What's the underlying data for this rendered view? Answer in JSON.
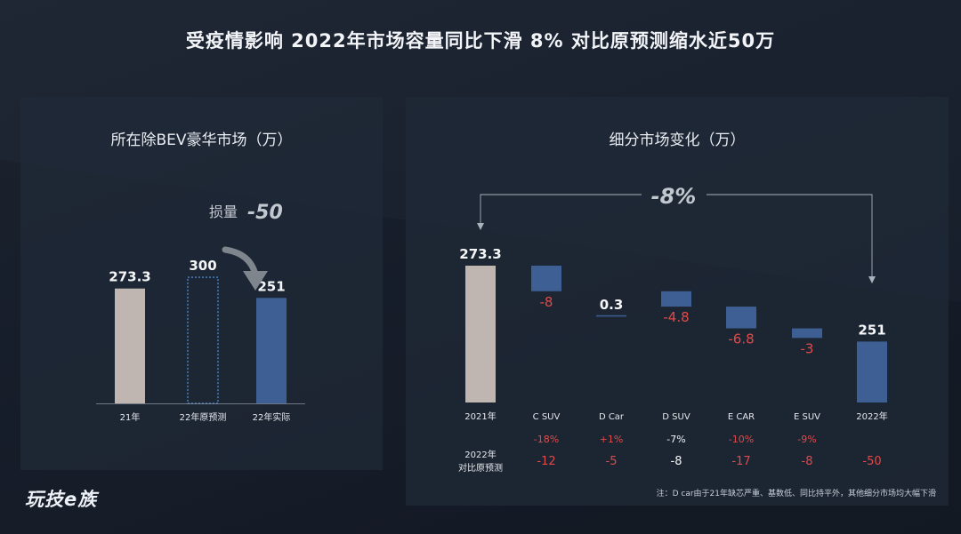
{
  "headline": "受疫情影响  2022年市场容量同比下滑 8%  对比原预测缩水近50万",
  "logo": "玩技e族",
  "note": "注：D car由于21年缺芯严重、基数低、同比持平外，其他细分市场均大幅下滑",
  "colors": {
    "gray_bar": "#bfb6b1",
    "blue_bar": "#3d5f93",
    "neg_text": "#e04a4a",
    "dashed": "#4a86c8"
  },
  "chart_data": [
    {
      "type": "bar",
      "title": "所在除BEV豪华市场（万）",
      "categories": [
        "21年",
        "22年原预测",
        "22年实际"
      ],
      "values": [
        273.3,
        300,
        251
      ],
      "value_labels": [
        "273.3",
        "300",
        "251"
      ],
      "styles": [
        "gray",
        "dashed",
        "blue"
      ],
      "annotation": {
        "label": "损量",
        "value": "-50"
      }
    },
    {
      "type": "bar",
      "subtype": "waterfall",
      "title": "细分市场变化（万）",
      "categories": [
        "2021年",
        "C SUV",
        "D Car",
        "D SUV",
        "E CAR",
        "E SUV",
        "2022年"
      ],
      "values": [
        273.3,
        -8,
        0.3,
        -4.8,
        -6.8,
        -3,
        251
      ],
      "value_labels": [
        "273.3",
        "-8",
        "0.3",
        "-4.8",
        "-6.8",
        "-3",
        "251"
      ],
      "kinds": [
        "total",
        "delta",
        "delta",
        "delta",
        "delta",
        "delta",
        "total"
      ],
      "overall_change": "-8%",
      "row1": {
        "label": "",
        "values": [
          "",
          "-18%",
          "+1%",
          "-7%",
          "-10%",
          "-9%",
          ""
        ]
      },
      "row2": {
        "label_line1": "2022年",
        "label_line2": "对比原预测",
        "values": [
          "",
          "-12",
          "-5",
          "-8",
          "-17",
          "-8",
          "-50"
        ]
      }
    }
  ]
}
